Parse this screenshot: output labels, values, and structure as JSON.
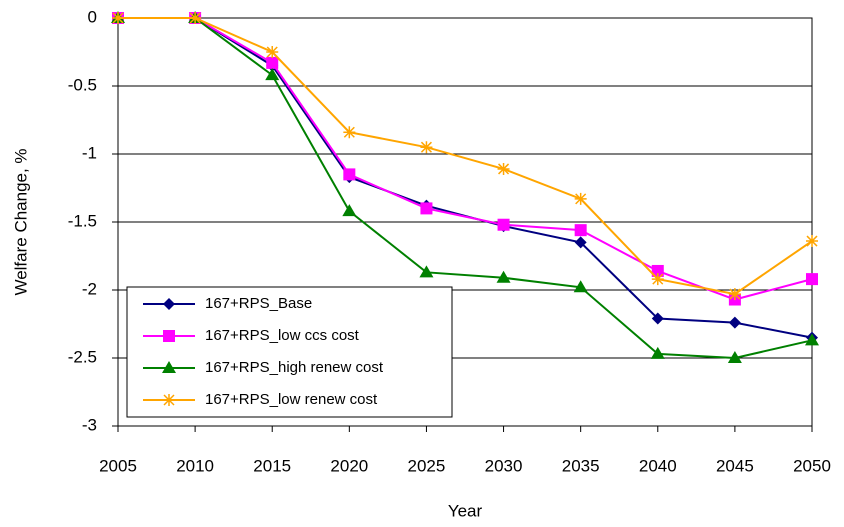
{
  "chart_data": {
    "type": "line",
    "x_label": "Year",
    "y_label": "Welfare Change, %",
    "x": [
      2005,
      2010,
      2015,
      2020,
      2025,
      2030,
      2035,
      2040,
      2045,
      2050
    ],
    "xlim": [
      2005,
      2050
    ],
    "xticks": [
      2005,
      2010,
      2015,
      2020,
      2025,
      2030,
      2035,
      2040,
      2045,
      2050
    ],
    "ylim": [
      -3,
      0
    ],
    "yticks": [
      0,
      -0.5,
      -1,
      -1.5,
      -2,
      -2.5,
      -3
    ],
    "grid": true,
    "legend": "lower left",
    "series": [
      {
        "name": "167+RPS_Base",
        "color": "#000080",
        "marker": "diamond",
        "values": [
          0,
          0,
          -0.35,
          -1.17,
          -1.38,
          -1.53,
          -1.65,
          -2.21,
          -2.24,
          -2.35
        ]
      },
      {
        "name": "167+RPS_low ccs cost",
        "color": "#ff00ff",
        "marker": "square",
        "values": [
          0,
          0,
          -0.33,
          -1.15,
          -1.4,
          -1.52,
          -1.56,
          -1.86,
          -2.07,
          -1.92
        ]
      },
      {
        "name": "167+RPS_high renew cost",
        "color": "#008000",
        "marker": "triangle",
        "values": [
          0,
          0,
          -0.42,
          -1.42,
          -1.87,
          -1.91,
          -1.98,
          -2.47,
          -2.5,
          -2.37
        ]
      },
      {
        "name": "167+RPS_low renew cost",
        "color": "#ffa500",
        "marker": "star",
        "values": [
          0,
          0,
          -0.25,
          -0.84,
          -0.95,
          -1.11,
          -1.33,
          -1.92,
          -2.03,
          -1.64
        ]
      }
    ]
  }
}
